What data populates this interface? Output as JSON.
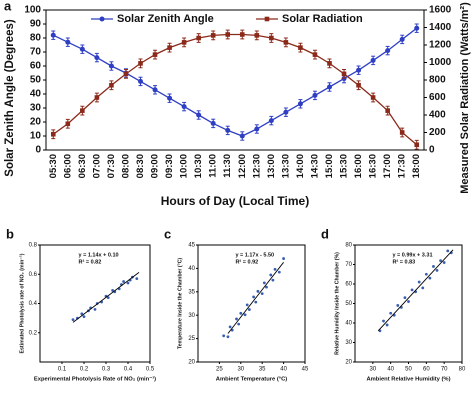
{
  "chart_data": [
    {
      "type": "line",
      "label": "a",
      "x_label": "Hours of Day (Local Time)",
      "y_label": "Solar Zenith Angle (Degrees)",
      "y2_label": "Measured Solar Radiation (Watts/m²)",
      "categories": [
        "05:30",
        "06:00",
        "06:30",
        "07:00",
        "07:30",
        "08:00",
        "08:30",
        "09:00",
        "09:30",
        "10:00",
        "10:30",
        "11:00",
        "11:30",
        "12:00",
        "12:30",
        "13:00",
        "13:30",
        "14:00",
        "14:30",
        "15:00",
        "15:30",
        "16:00",
        "16:30",
        "17:00",
        "17:30",
        "18:00"
      ],
      "ylim": [
        0,
        100
      ],
      "yticks": [
        0,
        10,
        20,
        30,
        40,
        50,
        60,
        70,
        80,
        90,
        100
      ],
      "y2lim": [
        0,
        1600
      ],
      "y2ticks": [
        0,
        200,
        400,
        600,
        800,
        1000,
        1200,
        1400,
        1600
      ],
      "series": [
        {
          "name": "Solar Zenith Angle",
          "color": "#2f3fc4",
          "marker": "circle",
          "values": [
            82,
            77,
            72,
            66,
            60,
            55,
            49,
            43,
            37,
            31,
            25,
            19,
            14,
            10,
            15,
            21,
            27,
            33,
            39,
            45,
            51,
            57,
            64,
            71,
            79,
            87
          ],
          "errors": [
            3,
            3,
            3,
            3,
            3,
            3,
            3,
            3,
            3,
            3,
            3,
            3,
            3,
            3,
            3,
            3,
            3,
            3,
            3,
            3,
            3,
            3,
            3,
            3,
            3,
            3
          ]
        },
        {
          "name": "Solar Radiation",
          "color": "#8b2a1a",
          "marker": "square",
          "axis": "y2",
          "values": [
            180,
            300,
            450,
            600,
            740,
            870,
            990,
            1090,
            1170,
            1230,
            1280,
            1310,
            1320,
            1320,
            1310,
            1280,
            1230,
            1170,
            1090,
            990,
            870,
            740,
            600,
            450,
            200,
            60
          ],
          "errors": [
            50,
            50,
            50,
            50,
            50,
            50,
            50,
            50,
            50,
            50,
            50,
            50,
            50,
            50,
            50,
            50,
            50,
            50,
            50,
            50,
            50,
            50,
            50,
            50,
            50,
            50
          ]
        }
      ]
    },
    {
      "type": "scatter",
      "label": "b",
      "color": "#3a5fb0",
      "x_label": "Experimental Photolysis Rate of NO₂ (min⁻¹)",
      "y_label": "Estimated Photolysis rate of NO₂ (min⁻¹)",
      "annotations": [
        "y = 1.14x + 0.10",
        "R² = 0.82"
      ],
      "xlim": [
        0,
        0.5
      ],
      "xticks": [
        0.1,
        0.2,
        0.3,
        0.4,
        0.5
      ],
      "ylim": [
        0,
        0.8
      ],
      "yticks": [
        0.2,
        0.4,
        0.6,
        0.8
      ],
      "x": [
        0.15,
        0.17,
        0.19,
        0.2,
        0.22,
        0.23,
        0.25,
        0.26,
        0.28,
        0.3,
        0.31,
        0.33,
        0.34,
        0.36,
        0.37,
        0.38,
        0.4,
        0.41,
        0.42,
        0.44
      ],
      "y": [
        0.29,
        0.3,
        0.33,
        0.31,
        0.35,
        0.37,
        0.36,
        0.4,
        0.41,
        0.45,
        0.44,
        0.49,
        0.48,
        0.5,
        0.53,
        0.55,
        0.54,
        0.56,
        0.58,
        0.57
      ],
      "fit": {
        "x": [
          0.15,
          0.45
        ],
        "y": [
          0.271,
          0.613
        ]
      }
    },
    {
      "type": "scatter",
      "label": "c",
      "color": "#3a5fb0",
      "x_label": "Ambient Temperature (°C)",
      "y_label": "Temperature Inside the Chamber (°C)",
      "annotations": [
        "y = 1.17x - 5.50",
        "R² = 0.92"
      ],
      "xlim": [
        20,
        45
      ],
      "xticks": [
        25,
        30,
        35,
        40,
        45
      ],
      "ylim": [
        20,
        45
      ],
      "yticks": [
        20,
        25,
        30,
        35,
        40,
        45
      ],
      "x": [
        26,
        27,
        27.5,
        28,
        29,
        29.5,
        30,
        31,
        31.5,
        32,
        33,
        33.5,
        34,
        35,
        35.5,
        36,
        37,
        37.5,
        38,
        39,
        40
      ],
      "y": [
        25.6,
        25.4,
        27.5,
        26.8,
        29.2,
        28.1,
        30.4,
        30.1,
        32.2,
        31.2,
        33.9,
        32.8,
        35.1,
        34.6,
        36.9,
        36,
        38.6,
        37.5,
        39.8,
        39.2,
        42.1
      ],
      "fit": {
        "x": [
          27,
          40
        ],
        "y": [
          26.09,
          41.3
        ]
      }
    },
    {
      "type": "scatter",
      "label": "d",
      "color": "#3a5fb0",
      "x_label": "Ambient Relative Humidity (%)",
      "y_label": "Relative Humidity Inside the Chamber (%)",
      "annotations": [
        "y = 0.99x + 3.31",
        "R² = 0.83"
      ],
      "xlim": [
        20,
        80
      ],
      "xticks": [
        30,
        40,
        50,
        60,
        70,
        80
      ],
      "ylim": [
        20,
        80
      ],
      "yticks": [
        20,
        30,
        40,
        50,
        60,
        70,
        80
      ],
      "x": [
        34,
        36,
        38,
        40,
        42,
        44,
        46,
        48,
        50,
        52,
        54,
        56,
        58,
        60,
        62,
        64,
        66,
        68,
        70,
        72,
        74
      ],
      "y": [
        36,
        41,
        39,
        45,
        44,
        49,
        48,
        53,
        51,
        57,
        56,
        61,
        58,
        65,
        63,
        69,
        67,
        72,
        71,
        77,
        76
      ],
      "fit": {
        "x": [
          33,
          75
        ],
        "y": [
          35.98,
          77.56
        ]
      }
    }
  ]
}
